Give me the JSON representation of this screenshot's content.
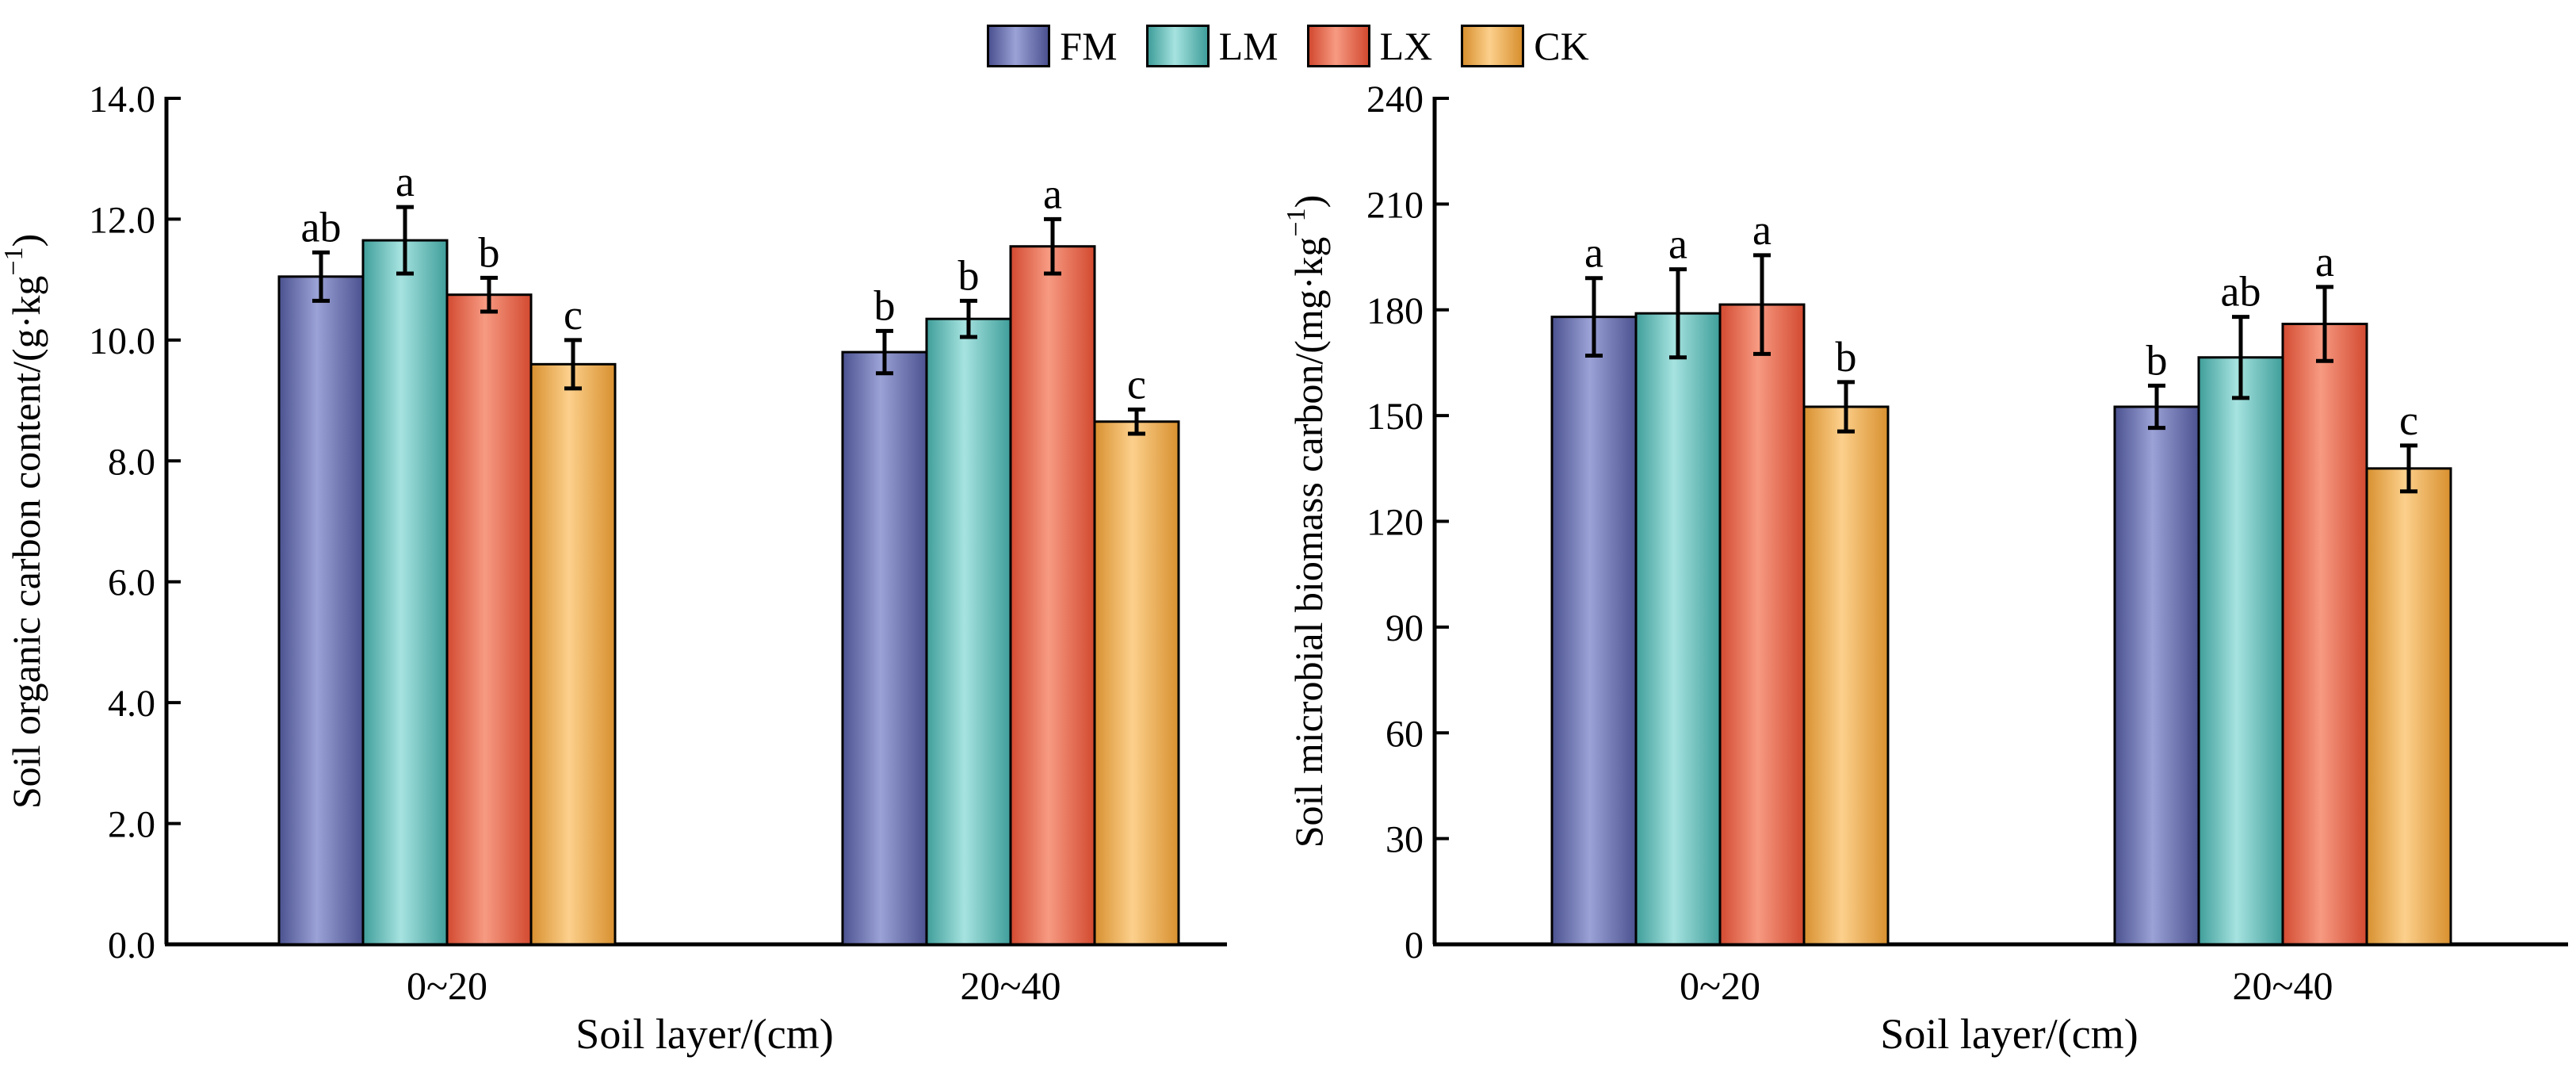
{
  "legend": [
    {
      "key": "FM",
      "label": "FM",
      "color_light": "#9ba2d6",
      "color_dark": "#4b5290"
    },
    {
      "key": "LM",
      "label": "LM",
      "color_light": "#a6e3e0",
      "color_dark": "#3f9e9a"
    },
    {
      "key": "LX",
      "label": "LX",
      "color_light": "#f79a82",
      "color_dark": "#d24a30"
    },
    {
      "key": "CK",
      "label": "CK",
      "color_light": "#fcd08c",
      "color_dark": "#d8902f"
    }
  ],
  "chart_data": [
    {
      "type": "bar",
      "title": "",
      "xlabel": "Soil layer/(cm)",
      "ylabel": "Soil organic carbon content/(g·kg",
      "ylabel_sup": "−1",
      "ylabel_close": ")",
      "categories": [
        "0~20",
        "20~40"
      ],
      "ylim": [
        0,
        14
      ],
      "yticks": [
        "0.0",
        "2.0",
        "4.0",
        "6.0",
        "8.0",
        "10.0",
        "12.0",
        "14.0"
      ],
      "series": [
        {
          "name": "FM",
          "values": [
            11.05,
            9.8
          ],
          "errors": [
            0.4,
            0.35
          ],
          "letters": [
            "ab",
            "b"
          ]
        },
        {
          "name": "LM",
          "values": [
            11.65,
            10.35
          ],
          "errors": [
            0.55,
            0.3
          ],
          "letters": [
            "a",
            "b"
          ]
        },
        {
          "name": "LX",
          "values": [
            10.75,
            11.55
          ],
          "errors": [
            0.28,
            0.45
          ],
          "letters": [
            "b",
            "a"
          ]
        },
        {
          "name": "CK",
          "values": [
            9.6,
            8.65
          ],
          "errors": [
            0.4,
            0.2
          ],
          "letters": [
            "c",
            "c"
          ]
        }
      ]
    },
    {
      "type": "bar",
      "title": "",
      "xlabel": "Soil layer/(cm)",
      "ylabel": "Soil microbial biomass carbon/(mg·kg",
      "ylabel_sup": "−1",
      "ylabel_close": ")",
      "categories": [
        "0~20",
        "20~40"
      ],
      "ylim": [
        0,
        240
      ],
      "yticks": [
        "0",
        "30",
        "60",
        "90",
        "120",
        "150",
        "180",
        "210",
        "240"
      ],
      "series": [
        {
          "name": "FM",
          "values": [
            178,
            152.5
          ],
          "errors": [
            11,
            6
          ],
          "letters": [
            "a",
            "b"
          ]
        },
        {
          "name": "LM",
          "values": [
            179,
            166.5
          ],
          "errors": [
            12.5,
            11.5
          ],
          "letters": [
            "a",
            "ab"
          ]
        },
        {
          "name": "LX",
          "values": [
            181.5,
            176
          ],
          "errors": [
            14,
            10.5
          ],
          "letters": [
            "a",
            "a"
          ]
        },
        {
          "name": "CK",
          "values": [
            152.5,
            135
          ],
          "errors": [
            7,
            6.5
          ],
          "letters": [
            "b",
            "c"
          ]
        }
      ]
    }
  ]
}
